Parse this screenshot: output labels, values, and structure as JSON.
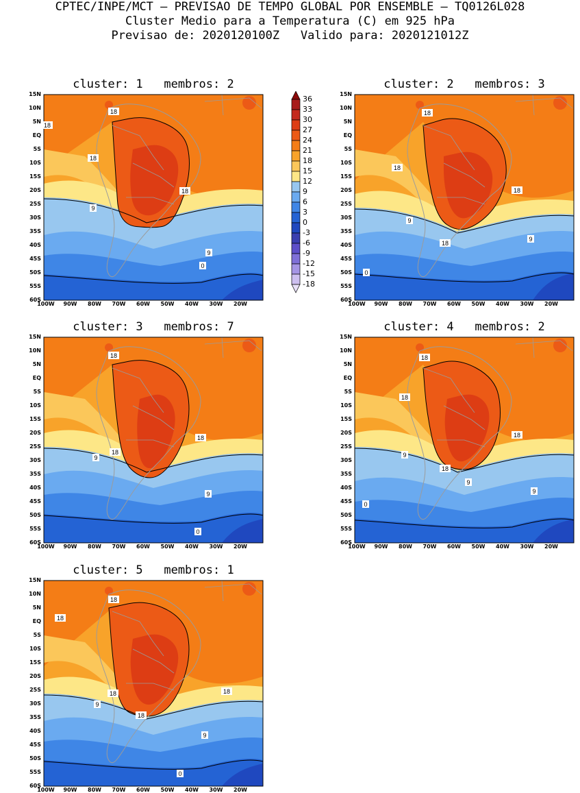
{
  "header": {
    "line1": "CPTEC/INPE/MCT — PREVISAO DE TEMPO GLOBAL POR ENSEMBLE — TQ0126L028",
    "line2": "Cluster Medio para a Temperatura (C) em 925 hPa",
    "line3": "Previsao de: 2020120100Z   Valido para: 2020121012Z"
  },
  "colorbar": {
    "labels": [
      "36",
      "33",
      "30",
      "27",
      "24",
      "21",
      "18",
      "15",
      "12",
      "9",
      "6",
      "3",
      "0",
      "-3",
      "-6",
      "-9",
      "-12",
      "-15",
      "-18"
    ],
    "colors": [
      "#8b0a0a",
      "#a81b1b",
      "#c42a1f",
      "#dd3d14",
      "#ec5a16",
      "#f47d16",
      "#f8a32a",
      "#fbc75a",
      "#fde787",
      "#98c7ef",
      "#6aaaf0",
      "#3f86e6",
      "#2463d4",
      "#1f48bf",
      "#3a3fb0",
      "#5d4fc9",
      "#7f70d8",
      "#a595e5",
      "#cdbff0"
    ]
  },
  "lat_labels": [
    "15N",
    "10N",
    "5N",
    "EQ",
    "5S",
    "10S",
    "15S",
    "20S",
    "25S",
    "30S",
    "35S",
    "40S",
    "45S",
    "50S",
    "55S",
    "60S"
  ],
  "lon_labels": [
    "100W",
    "90W",
    "80W",
    "70W",
    "60W",
    "50W",
    "40W",
    "30W",
    "20W"
  ],
  "panels": [
    {
      "title": "cluster: 1   membros: 2",
      "labels": [
        "18",
        "18",
        "18",
        "18",
        "9",
        "9",
        "0"
      ]
    },
    {
      "title": "cluster: 2   membros: 3",
      "labels": [
        "18",
        "18",
        "18",
        "9",
        "18",
        "9",
        "0"
      ]
    },
    {
      "title": "cluster: 3   membros: 7",
      "labels": [
        "18",
        "18",
        "18",
        "9",
        "9",
        "0"
      ]
    },
    {
      "title": "cluster: 4   membros: 2",
      "labels": [
        "18",
        "18",
        "18",
        "9",
        "18",
        "9",
        "9",
        "0"
      ]
    },
    {
      "title": "cluster: 5   membros: 1",
      "labels": [
        "18",
        "18",
        "18",
        "18",
        "9",
        "18",
        "9",
        "0"
      ]
    }
  ]
}
